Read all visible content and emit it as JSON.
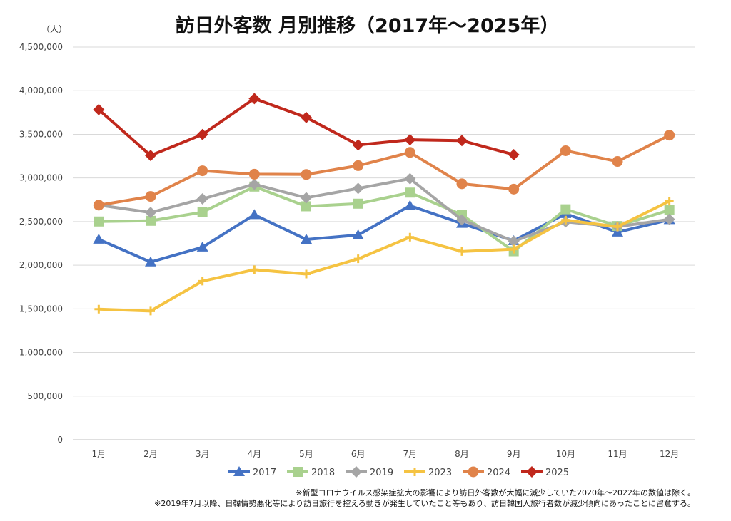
{
  "chart_data": {
    "type": "line",
    "title": "訪日外客数 月別推移（2017年～2025年）",
    "ylabel": "（人）",
    "xlabel": "",
    "categories": [
      "1月",
      "2月",
      "3月",
      "4月",
      "5月",
      "6月",
      "7月",
      "8月",
      "9月",
      "10月",
      "11月",
      "12月"
    ],
    "ylim": [
      0,
      4500000
    ],
    "yticks": [
      0,
      500000,
      1000000,
      1500000,
      2000000,
      2500000,
      3000000,
      3500000,
      4000000,
      4500000
    ],
    "ytick_labels": [
      "0",
      "500,000",
      "1,000,000",
      "1,500,000",
      "2,000,000",
      "2,500,000",
      "3,000,000",
      "3,500,000",
      "4,000,000",
      "4,500,000"
    ],
    "grid": true,
    "legend": "bottom",
    "series": [
      {
        "name": "2017",
        "color": "#4472C4",
        "marker": "triangle",
        "values": [
          2296000,
          2036000,
          2206000,
          2578000,
          2295000,
          2346000,
          2682000,
          2478000,
          2280000,
          2590000,
          2378000,
          2521000
        ]
      },
      {
        "name": "2018",
        "color": "#A9D18E",
        "marker": "square",
        "values": [
          2501000,
          2509000,
          2608000,
          2901000,
          2675000,
          2705000,
          2832000,
          2578000,
          2160000,
          2641000,
          2449000,
          2632000
        ]
      },
      {
        "name": "2019",
        "color": "#A5A5A5",
        "marker": "diamond",
        "values": [
          2689000,
          2604000,
          2760000,
          2927000,
          2773000,
          2880000,
          2991000,
          2520000,
          2273000,
          2497000,
          2441000,
          2526000
        ]
      },
      {
        "name": "2023",
        "color": "#F5C342",
        "marker": "plus",
        "values": [
          1497000,
          1475000,
          1818000,
          1949000,
          1899000,
          2073000,
          2321000,
          2157000,
          2184000,
          2517000,
          2441000,
          2734000
        ]
      },
      {
        "name": "2024",
        "color": "#E0834A",
        "marker": "circle",
        "values": [
          2688000,
          2788000,
          3082000,
          3043000,
          3040000,
          3141000,
          3293000,
          2933000,
          2872000,
          3312000,
          3189000,
          3490000
        ]
      },
      {
        "name": "2025",
        "color": "#C0281C",
        "marker": "diamond",
        "values": [
          3782000,
          3258000,
          3498000,
          3909000,
          3693000,
          3378000,
          3437000,
          3428000,
          3267000,
          null,
          null,
          null
        ]
      }
    ]
  },
  "notes": [
    "※新型コロナウイルス感染症拡大の影響により訪日外客数が大幅に減少していた2020年～2022年の数値は除く。",
    "※2019年7月以降、日韓情勢悪化等により訪日旅行を控える動きが発生していたこと等もあり、訪日韓国人旅行者数が減少傾向にあったことに留意する。"
  ]
}
